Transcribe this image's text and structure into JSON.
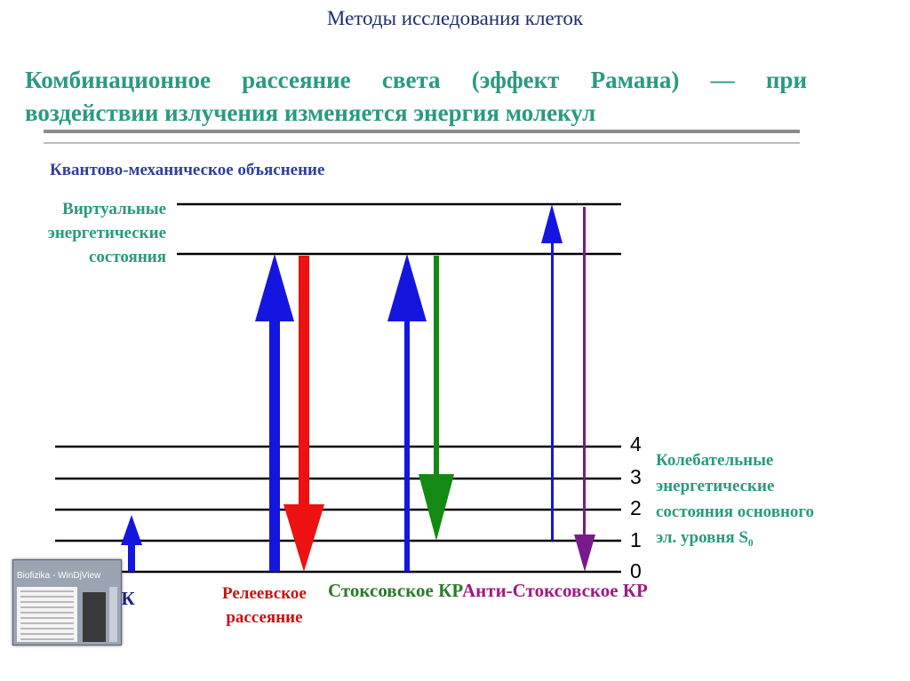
{
  "slide": {
    "title": "Методы исследования клеток",
    "headline_line1": "Комбинационное рассеяние света (эффект Рамана) — при",
    "headline_line2": "воздействии излучения изменяется энергия молекул"
  },
  "diagram": {
    "heading": "Квантово-механическое объяснение",
    "virtual_states": [
      "Виртуальные",
      "энергетические",
      "состояния"
    ],
    "vibrational_states": [
      "Колебательные",
      "энергетические",
      "состояния основного",
      "эл. уровня S₀"
    ],
    "level_numbers": [
      "4",
      "3",
      "2",
      "1",
      "0"
    ],
    "transitions": {
      "ik": "ИК",
      "rayleigh": [
        "Релеевское",
        "рассеяние"
      ],
      "stokes": "Стоксовское КР",
      "antistokes": "Анти-Стоксовское КР"
    },
    "colors": {
      "excite": "#1515e0",
      "rayleigh": "#ee1111",
      "stokes": "#138a13",
      "antistokes": "#7a1a8a"
    }
  },
  "taskbar_thumbnail": {
    "title": "Biofizika - WinDjView"
  }
}
